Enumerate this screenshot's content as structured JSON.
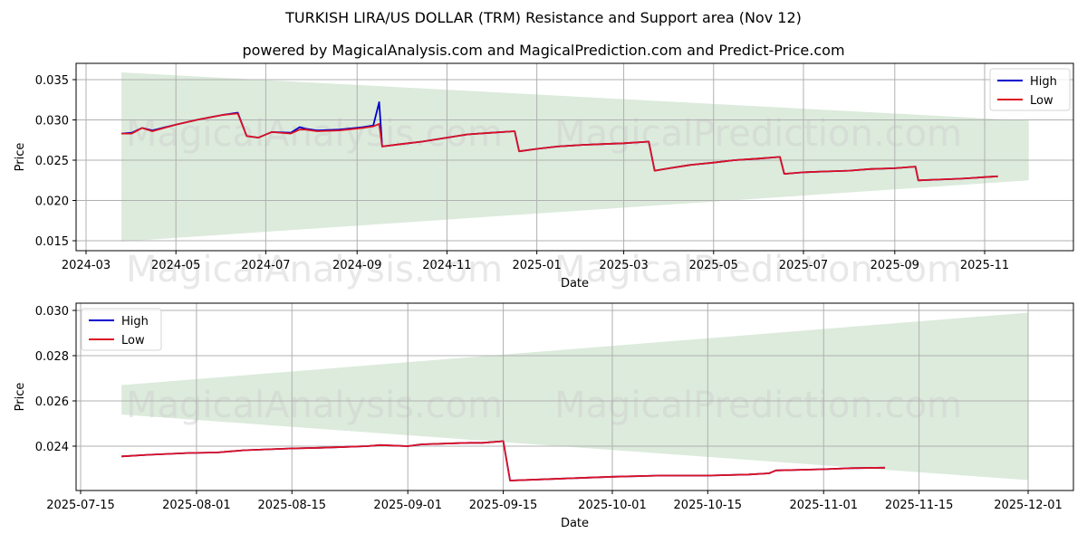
{
  "title": "TURKISH LIRA/US DOLLAR (TRM) Resistance and Support area (Nov 12)",
  "subtitle": "powered by MagicalAnalysis.com and MagicalPrediction.com and Predict-Price.com",
  "watermarks": [
    "MagicalAnalysis.com",
    "MagicalPrediction.com"
  ],
  "colors": {
    "high": "#0000cc",
    "low": "#dd1122",
    "band": "#dcebdc",
    "grid": "#b0b0b0"
  },
  "chart_data": [
    {
      "type": "line",
      "title": "",
      "xlabel": "Date",
      "ylabel": "Price",
      "x_ticks": [
        "2024-03",
        "2024-05",
        "2024-07",
        "2024-09",
        "2024-11",
        "2025-01",
        "2025-03",
        "2025-05",
        "2025-07",
        "2025-09",
        "2025-11"
      ],
      "y_ticks": [
        "0.015",
        "0.020",
        "0.025",
        "0.030",
        "0.035"
      ],
      "ylim": [
        0.0138,
        0.0368
      ],
      "grid": true,
      "legend_position": "upper right",
      "legend": [
        "High",
        "Low"
      ],
      "band": {
        "label": "Resistance/Support area",
        "x": [
          "2024-03-25",
          "2025-12-01"
        ],
        "upper": [
          0.0359,
          0.0299
        ],
        "lower": [
          0.0149,
          0.0225
        ]
      },
      "series": [
        {
          "name": "High",
          "x": [
            "2024-03-25",
            "2024-04-01",
            "2024-04-08",
            "2024-04-15",
            "2024-05-01",
            "2024-05-15",
            "2024-06-01",
            "2024-06-12",
            "2024-06-18",
            "2024-06-26",
            "2024-07-05",
            "2024-07-18",
            "2024-07-24",
            "2024-07-28",
            "2024-08-05",
            "2024-08-20",
            "2024-09-05",
            "2024-09-12",
            "2024-09-16",
            "2024-09-18",
            "2024-10-01",
            "2024-10-15",
            "2024-11-01",
            "2024-11-15",
            "2024-12-01",
            "2024-12-17",
            "2024-12-20",
            "2025-01-01",
            "2025-01-15",
            "2025-02-01",
            "2025-02-15",
            "2025-03-01",
            "2025-03-18",
            "2025-03-22",
            "2025-04-01",
            "2025-04-15",
            "2025-05-01",
            "2025-05-15",
            "2025-06-01",
            "2025-06-15",
            "2025-06-18",
            "2025-07-01",
            "2025-07-15",
            "2025-08-01",
            "2025-08-15",
            "2025-09-01",
            "2025-09-15",
            "2025-09-17",
            "2025-10-01",
            "2025-10-15",
            "2025-10-24",
            "2025-11-01",
            "2025-11-10"
          ],
          "values": [
            0.0283,
            0.0284,
            0.029,
            0.0287,
            0.0294,
            0.03,
            0.0306,
            0.0309,
            0.028,
            0.0278,
            0.0285,
            0.0284,
            0.0291,
            0.0289,
            0.0287,
            0.0288,
            0.0291,
            0.0293,
            0.0322,
            0.0267,
            0.027,
            0.0273,
            0.0278,
            0.0282,
            0.0284,
            0.0286,
            0.0261,
            0.0264,
            0.0267,
            0.0269,
            0.027,
            0.0271,
            0.0273,
            0.0237,
            0.024,
            0.0244,
            0.0247,
            0.025,
            0.0252,
            0.0254,
            0.0233,
            0.0235,
            0.0236,
            0.0237,
            0.0239,
            0.024,
            0.0242,
            0.0225,
            0.0226,
            0.0227,
            0.0228,
            0.0229,
            0.023
          ]
        },
        {
          "name": "Low",
          "x": [
            "2024-03-25",
            "2024-04-01",
            "2024-04-08",
            "2024-04-15",
            "2024-05-01",
            "2024-05-15",
            "2024-06-01",
            "2024-06-12",
            "2024-06-18",
            "2024-06-26",
            "2024-07-05",
            "2024-07-18",
            "2024-07-24",
            "2024-07-28",
            "2024-08-05",
            "2024-08-20",
            "2024-09-05",
            "2024-09-12",
            "2024-09-16",
            "2024-09-18",
            "2024-10-01",
            "2024-10-15",
            "2024-11-01",
            "2024-11-15",
            "2024-12-01",
            "2024-12-17",
            "2024-12-20",
            "2025-01-01",
            "2025-01-15",
            "2025-02-01",
            "2025-02-15",
            "2025-03-01",
            "2025-03-18",
            "2025-03-22",
            "2025-04-01",
            "2025-04-15",
            "2025-05-01",
            "2025-05-15",
            "2025-06-01",
            "2025-06-15",
            "2025-06-18",
            "2025-07-01",
            "2025-07-15",
            "2025-08-01",
            "2025-08-15",
            "2025-09-01",
            "2025-09-15",
            "2025-09-17",
            "2025-10-01",
            "2025-10-15",
            "2025-10-24",
            "2025-11-01",
            "2025-11-10"
          ],
          "values": [
            0.0283,
            0.0283,
            0.029,
            0.0286,
            0.0294,
            0.03,
            0.0306,
            0.0308,
            0.028,
            0.0278,
            0.0285,
            0.0283,
            0.0288,
            0.0288,
            0.0286,
            0.0287,
            0.029,
            0.0292,
            0.0295,
            0.0267,
            0.027,
            0.0273,
            0.0278,
            0.0282,
            0.0284,
            0.0286,
            0.0261,
            0.0264,
            0.0267,
            0.0269,
            0.027,
            0.0271,
            0.0273,
            0.0237,
            0.024,
            0.0244,
            0.0247,
            0.025,
            0.0252,
            0.0254,
            0.0233,
            0.0235,
            0.0236,
            0.0237,
            0.0239,
            0.024,
            0.0242,
            0.0225,
            0.0226,
            0.0227,
            0.0228,
            0.0229,
            0.023
          ]
        }
      ]
    },
    {
      "type": "line",
      "title": "",
      "xlabel": "Date",
      "ylabel": "Price",
      "x_ticks": [
        "2025-07-15",
        "2025-08-01",
        "2025-08-15",
        "2025-09-01",
        "2025-09-15",
        "2025-10-01",
        "2025-10-15",
        "2025-11-01",
        "2025-11-15",
        "2025-12-01"
      ],
      "y_ticks": [
        "0.024",
        "0.026",
        "0.028",
        "0.030"
      ],
      "ylim": [
        0.02221,
        0.03031
      ],
      "grid": true,
      "legend_position": "upper left",
      "legend": [
        "High",
        "Low"
      ],
      "band": {
        "label": "Resistance/Support area",
        "x": [
          "2025-07-21",
          "2025-12-01"
        ],
        "upper": [
          0.0267,
          0.0299
        ],
        "lower": [
          0.0254,
          0.0225
        ]
      },
      "series": [
        {
          "name": "High",
          "x": [
            "2025-07-21",
            "2025-07-25",
            "2025-07-31",
            "2025-08-04",
            "2025-08-08",
            "2025-08-15",
            "2025-08-19",
            "2025-08-26",
            "2025-08-28",
            "2025-09-01",
            "2025-09-03",
            "2025-09-10",
            "2025-09-12",
            "2025-09-15",
            "2025-09-16",
            "2025-09-22",
            "2025-10-01",
            "2025-10-08",
            "2025-10-15",
            "2025-10-21",
            "2025-10-24",
            "2025-10-25",
            "2025-11-01",
            "2025-11-05",
            "2025-11-10"
          ],
          "values": [
            0.02355,
            0.02362,
            0.0237,
            0.02372,
            0.02382,
            0.0239,
            0.02393,
            0.024,
            0.02405,
            0.024,
            0.02408,
            0.02415,
            0.02415,
            0.02422,
            0.02248,
            0.02255,
            0.02265,
            0.0227,
            0.0227,
            0.02275,
            0.0228,
            0.02293,
            0.02298,
            0.02303,
            0.02305
          ]
        },
        {
          "name": "Low",
          "x": [
            "2025-07-21",
            "2025-07-25",
            "2025-07-31",
            "2025-08-04",
            "2025-08-08",
            "2025-08-15",
            "2025-08-19",
            "2025-08-26",
            "2025-08-28",
            "2025-09-01",
            "2025-09-03",
            "2025-09-10",
            "2025-09-12",
            "2025-09-15",
            "2025-09-16",
            "2025-09-22",
            "2025-10-01",
            "2025-10-08",
            "2025-10-15",
            "2025-10-21",
            "2025-10-24",
            "2025-10-25",
            "2025-11-01",
            "2025-11-05",
            "2025-11-10"
          ],
          "values": [
            0.02355,
            0.02362,
            0.0237,
            0.02372,
            0.02382,
            0.0239,
            0.02393,
            0.024,
            0.02405,
            0.024,
            0.02408,
            0.02415,
            0.02415,
            0.02422,
            0.02248,
            0.02255,
            0.02265,
            0.0227,
            0.0227,
            0.02275,
            0.0228,
            0.02293,
            0.02298,
            0.02303,
            0.02305
          ]
        }
      ]
    }
  ]
}
